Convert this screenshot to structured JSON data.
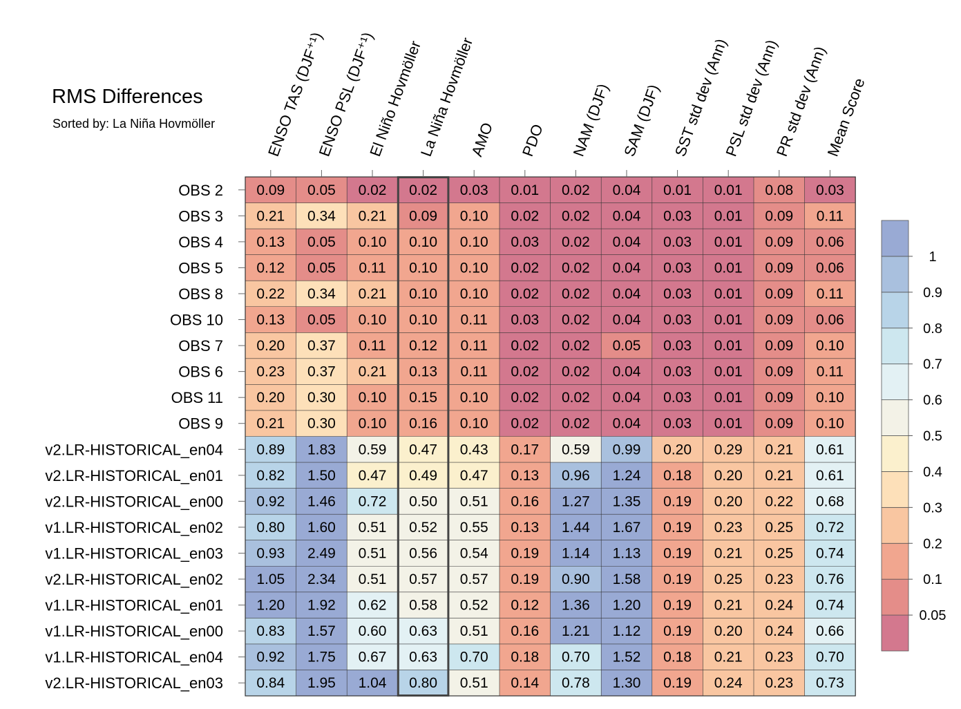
{
  "chart_data": {
    "type": "heatmap",
    "title": "RMS Differences",
    "subtitle": "Sorted by: La Niña Hovmöller",
    "columns": [
      "ENSO TAS (DJF⁺¹)",
      "ENSO PSL (DJF⁺¹)",
      "El Niño Hovmöller",
      "La Niña Hovmöller",
      "AMO",
      "PDO",
      "NAM (DJF)",
      "SAM (DJF)",
      "SST std dev (Ann)",
      "PSL std dev (Ann)",
      "PR std dev (Ann)",
      "Mean Score"
    ],
    "highlighted_column": "La Niña Hovmöller",
    "rows": [
      "OBS 2",
      "OBS 3",
      "OBS 4",
      "OBS 5",
      "OBS 8",
      "OBS 10",
      "OBS 7",
      "OBS 6",
      "OBS 11",
      "OBS 9",
      "v2.LR-HISTORICAL_en04",
      "v2.LR-HISTORICAL_en01",
      "v2.LR-HISTORICAL_en00",
      "v1.LR-HISTORICAL_en02",
      "v1.LR-HISTORICAL_en03",
      "v2.LR-HISTORICAL_en02",
      "v1.LR-HISTORICAL_en01",
      "v1.LR-HISTORICAL_en00",
      "v1.LR-HISTORICAL_en04",
      "v2.LR-HISTORICAL_en03"
    ],
    "values": [
      [
        "0.09",
        "0.05",
        "0.02",
        "0.02",
        "0.03",
        "0.01",
        "0.02",
        "0.04",
        "0.01",
        "0.01",
        "0.08",
        "0.03"
      ],
      [
        "0.21",
        "0.34",
        "0.21",
        "0.09",
        "0.10",
        "0.02",
        "0.02",
        "0.04",
        "0.03",
        "0.01",
        "0.09",
        "0.11"
      ],
      [
        "0.13",
        "0.05",
        "0.10",
        "0.10",
        "0.10",
        "0.03",
        "0.02",
        "0.04",
        "0.03",
        "0.01",
        "0.09",
        "0.06"
      ],
      [
        "0.12",
        "0.05",
        "0.11",
        "0.10",
        "0.10",
        "0.02",
        "0.02",
        "0.04",
        "0.03",
        "0.01",
        "0.09",
        "0.06"
      ],
      [
        "0.22",
        "0.34",
        "0.21",
        "0.10",
        "0.10",
        "0.02",
        "0.02",
        "0.04",
        "0.03",
        "0.01",
        "0.09",
        "0.11"
      ],
      [
        "0.13",
        "0.05",
        "0.10",
        "0.10",
        "0.11",
        "0.03",
        "0.02",
        "0.04",
        "0.03",
        "0.01",
        "0.09",
        "0.06"
      ],
      [
        "0.20",
        "0.37",
        "0.11",
        "0.12",
        "0.11",
        "0.02",
        "0.02",
        "0.05",
        "0.03",
        "0.01",
        "0.09",
        "0.10"
      ],
      [
        "0.23",
        "0.37",
        "0.21",
        "0.13",
        "0.11",
        "0.02",
        "0.02",
        "0.04",
        "0.03",
        "0.01",
        "0.09",
        "0.11"
      ],
      [
        "0.20",
        "0.30",
        "0.10",
        "0.15",
        "0.10",
        "0.02",
        "0.02",
        "0.04",
        "0.03",
        "0.01",
        "0.09",
        "0.10"
      ],
      [
        "0.21",
        "0.30",
        "0.10",
        "0.16",
        "0.10",
        "0.02",
        "0.02",
        "0.04",
        "0.03",
        "0.01",
        "0.09",
        "0.10"
      ],
      [
        "0.89",
        "1.83",
        "0.59",
        "0.47",
        "0.43",
        "0.17",
        "0.59",
        "0.99",
        "0.20",
        "0.29",
        "0.21",
        "0.61"
      ],
      [
        "0.82",
        "1.50",
        "0.47",
        "0.49",
        "0.47",
        "0.13",
        "0.96",
        "1.24",
        "0.18",
        "0.20",
        "0.21",
        "0.61"
      ],
      [
        "0.92",
        "1.46",
        "0.72",
        "0.50",
        "0.51",
        "0.16",
        "1.27",
        "1.35",
        "0.19",
        "0.20",
        "0.22",
        "0.68"
      ],
      [
        "0.80",
        "1.60",
        "0.51",
        "0.52",
        "0.55",
        "0.13",
        "1.44",
        "1.67",
        "0.19",
        "0.23",
        "0.25",
        "0.72"
      ],
      [
        "0.93",
        "2.49",
        "0.51",
        "0.56",
        "0.54",
        "0.19",
        "1.14",
        "1.13",
        "0.19",
        "0.21",
        "0.25",
        "0.74"
      ],
      [
        "1.05",
        "2.34",
        "0.51",
        "0.57",
        "0.57",
        "0.19",
        "0.90",
        "1.58",
        "0.19",
        "0.25",
        "0.23",
        "0.76"
      ],
      [
        "1.20",
        "1.92",
        "0.62",
        "0.58",
        "0.52",
        "0.12",
        "1.36",
        "1.20",
        "0.19",
        "0.21",
        "0.24",
        "0.74"
      ],
      [
        "0.83",
        "1.57",
        "0.60",
        "0.63",
        "0.51",
        "0.16",
        "1.21",
        "1.12",
        "0.19",
        "0.20",
        "0.24",
        "0.66"
      ],
      [
        "0.92",
        "1.75",
        "0.67",
        "0.63",
        "0.70",
        "0.18",
        "0.70",
        "1.52",
        "0.18",
        "0.21",
        "0.23",
        "0.70"
      ],
      [
        "0.84",
        "1.95",
        "1.04",
        "0.80",
        "0.51",
        "0.14",
        "0.78",
        "1.30",
        "0.19",
        "0.24",
        "0.23",
        "0.73"
      ]
    ],
    "colorbar": {
      "bounds": [
        0.05,
        0.1,
        0.2,
        0.3,
        0.4,
        0.5,
        0.6,
        0.7,
        0.8,
        0.9,
        1
      ],
      "labels": [
        "0.05",
        "0.1",
        "0.2",
        "0.3",
        "0.4",
        "0.5",
        "0.6",
        "0.7",
        "0.8",
        "0.9",
        "1"
      ],
      "colors": [
        "#d3788e",
        "#e48d89",
        "#f1a68f",
        "#f9c6a1",
        "#fde0b9",
        "#fbf0cd",
        "#f3f2e7",
        "#e3f1f4",
        "#cde7ef",
        "#b8d4e8",
        "#a9c0de",
        "#99aad4"
      ]
    },
    "grid_color": "#333333",
    "highlight_color": "#444444"
  }
}
